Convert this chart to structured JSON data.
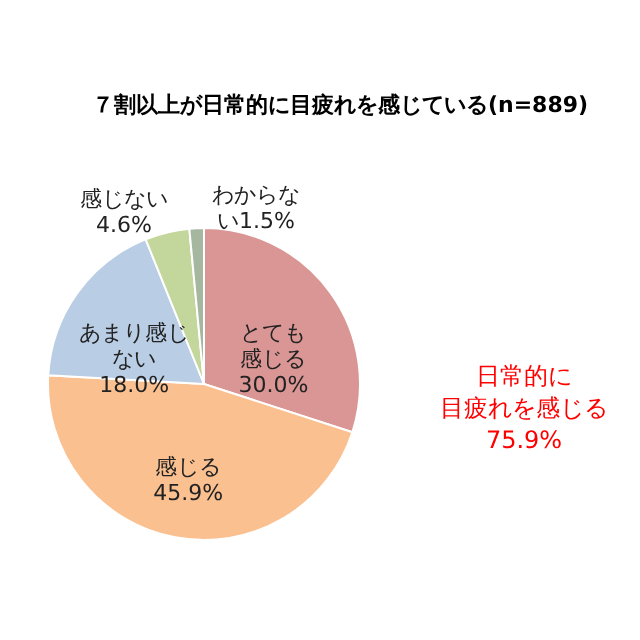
{
  "chart_data": {
    "type": "pie",
    "title": "７割以上が日常的に目疲れを感じている(n=889)",
    "categories": [
      "とても感じる",
      "感じる",
      "あまり感じない",
      "感じない",
      "わからない"
    ],
    "values": [
      30.0,
      45.9,
      18.0,
      4.6,
      1.5
    ],
    "value_labels": [
      "30.0%",
      "45.9%",
      "18.0%",
      "4.6%",
      "1.5%"
    ],
    "colors": [
      "#d99694",
      "#fac090",
      "#b9cde5",
      "#c3d69b",
      "#a6b7a0"
    ],
    "annotations": [
      "日常的に目疲れを感じる75.9%"
    ]
  }
}
